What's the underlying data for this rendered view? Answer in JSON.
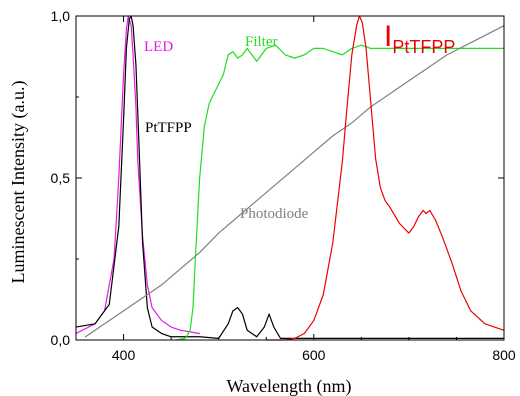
{
  "chart_data": {
    "type": "line",
    "xlabel": "Wavelength (nm)",
    "ylabel": "Luminescent Intensity (a.u.)",
    "xlim": [
      350,
      800
    ],
    "ylim": [
      0,
      1.0
    ],
    "x_ticks": [
      {
        "value": 400,
        "label": "400"
      },
      {
        "value": 600,
        "label": "600"
      },
      {
        "value": 800,
        "label": "800"
      }
    ],
    "y_ticks": [
      {
        "value": 0.0,
        "label": "0,0"
      },
      {
        "value": 0.5,
        "label": "0,5"
      },
      {
        "value": 1.0,
        "label": "1,0"
      }
    ],
    "grid": false,
    "legend": "none",
    "annotations": [
      {
        "id": "led",
        "text": "LED",
        "color": "#e619e6"
      },
      {
        "id": "filter",
        "text": "Filter",
        "color": "#22dd22"
      },
      {
        "id": "pttfpp",
        "text": "PtTFPP",
        "color": "#000000"
      },
      {
        "id": "photodiode",
        "text": "Photodiode",
        "color": "#808080"
      },
      {
        "id": "ipttfpp",
        "text": "I",
        "sub": "PtTFPP",
        "color": "#ee0000"
      }
    ],
    "series": [
      {
        "color": "#e619e6",
        "x": [
          350,
          370,
          380,
          390,
          395,
          400,
          403,
          405,
          408,
          410,
          413,
          415,
          420,
          425,
          430,
          440,
          450,
          460,
          470,
          480
        ],
        "y": [
          0.02,
          0.05,
          0.09,
          0.25,
          0.5,
          0.82,
          0.96,
          1.0,
          0.97,
          0.88,
          0.72,
          0.55,
          0.32,
          0.17,
          0.1,
          0.06,
          0.04,
          0.03,
          0.025,
          0.02
        ]
      },
      {
        "color": "#000000",
        "x": [
          350,
          370,
          385,
          395,
          400,
          403,
          406,
          408,
          410,
          413,
          416,
          420,
          425,
          430,
          440,
          450,
          460,
          480,
          500,
          510,
          515,
          520,
          525,
          530,
          540,
          548,
          553,
          558,
          565,
          580,
          600,
          650,
          700,
          750,
          800
        ],
        "y": [
          0.04,
          0.05,
          0.11,
          0.35,
          0.68,
          0.9,
          0.99,
          1.0,
          0.97,
          0.85,
          0.62,
          0.3,
          0.1,
          0.04,
          0.02,
          0.01,
          0.01,
          0.01,
          0.005,
          0.05,
          0.09,
          0.1,
          0.08,
          0.03,
          0.01,
          0.04,
          0.08,
          0.04,
          0.005,
          0.005,
          0.005,
          0.005,
          0.005,
          0.005,
          0.005
        ]
      },
      {
        "color": "#22dd22",
        "x": [
          455,
          465,
          470,
          473,
          476,
          480,
          485,
          490,
          495,
          500,
          505,
          510,
          515,
          520,
          525,
          530,
          540,
          550,
          560,
          570,
          580,
          590,
          600,
          610,
          620,
          630,
          640,
          650,
          660,
          670,
          700,
          750,
          800
        ],
        "y": [
          0.0,
          0.005,
          0.03,
          0.1,
          0.28,
          0.5,
          0.66,
          0.73,
          0.76,
          0.79,
          0.82,
          0.88,
          0.89,
          0.87,
          0.88,
          0.9,
          0.86,
          0.9,
          0.91,
          0.88,
          0.87,
          0.88,
          0.9,
          0.9,
          0.89,
          0.88,
          0.9,
          0.91,
          0.9,
          0.9,
          0.9,
          0.9,
          0.9
        ]
      },
      {
        "color": "#808080",
        "x": [
          360,
          380,
          400,
          420,
          440,
          460,
          480,
          500,
          520,
          540,
          560,
          580,
          600,
          620,
          640,
          660,
          680,
          700,
          720,
          740,
          760,
          780,
          800
        ],
        "y": [
          0.01,
          0.05,
          0.09,
          0.13,
          0.17,
          0.22,
          0.27,
          0.33,
          0.38,
          0.43,
          0.48,
          0.53,
          0.58,
          0.63,
          0.67,
          0.72,
          0.76,
          0.8,
          0.84,
          0.88,
          0.91,
          0.94,
          0.97
        ]
      },
      {
        "color": "#ee0000",
        "x": [
          550,
          570,
          580,
          590,
          600,
          610,
          620,
          630,
          635,
          640,
          645,
          648,
          651,
          655,
          660,
          665,
          670,
          675,
          680,
          690,
          700,
          705,
          710,
          715,
          718,
          722,
          728,
          735,
          745,
          755,
          765,
          780,
          800
        ],
        "y": [
          0.0,
          0.0,
          0.005,
          0.02,
          0.06,
          0.14,
          0.3,
          0.55,
          0.72,
          0.88,
          0.97,
          1.0,
          0.98,
          0.9,
          0.73,
          0.56,
          0.47,
          0.43,
          0.41,
          0.36,
          0.33,
          0.35,
          0.38,
          0.4,
          0.39,
          0.4,
          0.37,
          0.32,
          0.24,
          0.15,
          0.09,
          0.05,
          0.03
        ]
      }
    ]
  }
}
